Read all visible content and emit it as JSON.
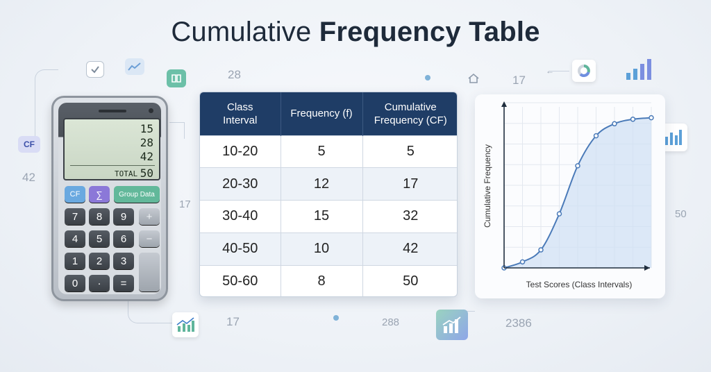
{
  "title": {
    "part1": "Cumulative ",
    "part2": "Frequency Table"
  },
  "floating_numbers": [
    "28",
    "17",
    "42",
    "17",
    "50",
    "17",
    "288",
    "2386"
  ],
  "calculator": {
    "display_lines": [
      "15",
      "28",
      "42"
    ],
    "total_label": "TOTAL",
    "total_value": "50",
    "func_keys": [
      "CF",
      "∑",
      "Group Data"
    ],
    "keys": [
      "7",
      "8",
      "9",
      "+",
      "4",
      "5",
      "6",
      "−",
      "1",
      "2",
      "3",
      "0",
      "·",
      "="
    ],
    "side_chip": "CF"
  },
  "table": {
    "headers": [
      "Class\nInterval",
      "Frequency (f)",
      "Cumulative\nFrequency (CF)"
    ],
    "rows": [
      [
        "10-20",
        "5",
        "5"
      ],
      [
        "20-30",
        "12",
        "17"
      ],
      [
        "30-40",
        "15",
        "32"
      ],
      [
        "40-50",
        "10",
        "42"
      ],
      [
        "50-60",
        "8",
        "50"
      ]
    ]
  },
  "chart_data": {
    "type": "line",
    "title": "",
    "xlabel": "Test Scores (Class Intervals)",
    "ylabel": "Cumulative Frequency",
    "x": [
      0,
      1,
      2,
      3,
      4,
      5,
      6,
      7,
      8
    ],
    "series": [
      {
        "values": [
          0,
          2,
          6,
          18,
          34,
          44,
          48,
          49.5,
          50
        ]
      }
    ],
    "ylim": [
      0,
      55
    ],
    "grid": true,
    "colors": {
      "line": "#4a7ab8",
      "fill": "#cfe0f4"
    }
  },
  "colors": {
    "header": "#1f3d66",
    "alt_row": "#edf2f8",
    "accent": "#4a7ab8"
  }
}
